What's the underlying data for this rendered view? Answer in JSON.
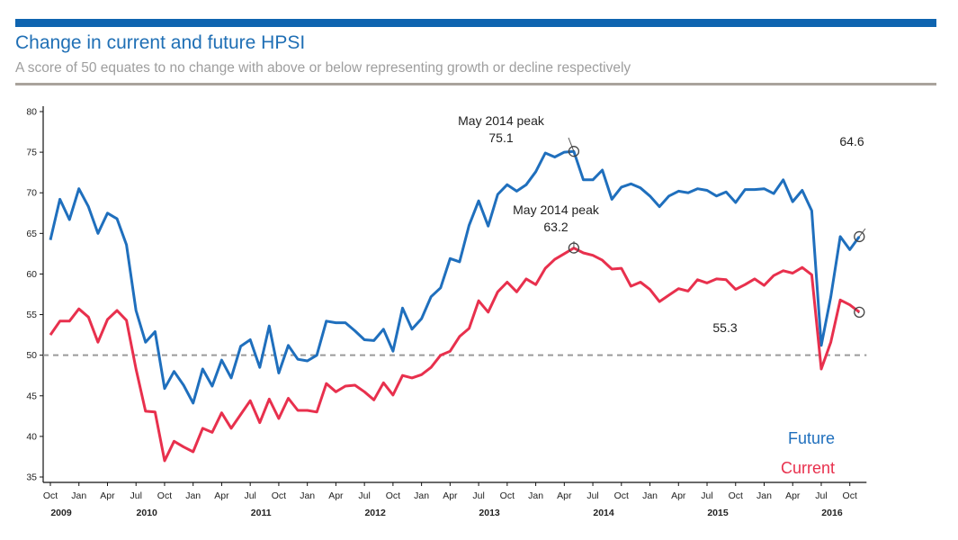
{
  "header": {
    "title": "Change in current and future HPSI",
    "subtitle": "A score of 50 equates to no change with above or below representing growth or decline respectively"
  },
  "colors": {
    "title": "#1f6fb5",
    "subtitle": "#9e9e9e",
    "top_bar": "#0e64b0",
    "future": "#1f6fbd",
    "current": "#e8304d",
    "reference_line": "#9a9a9a"
  },
  "chart_data": {
    "type": "line",
    "x_months": [
      "2009-10",
      "2009-11",
      "2009-12",
      "2010-01",
      "2010-02",
      "2010-03",
      "2010-04",
      "2010-05",
      "2010-06",
      "2010-07",
      "2010-08",
      "2010-09",
      "2010-10",
      "2010-11",
      "2010-12",
      "2011-01",
      "2011-02",
      "2011-03",
      "2011-04",
      "2011-05",
      "2011-06",
      "2011-07",
      "2011-08",
      "2011-09",
      "2011-10",
      "2011-11",
      "2011-12",
      "2012-01",
      "2012-02",
      "2012-03",
      "2012-04",
      "2012-05",
      "2012-06",
      "2012-07",
      "2012-08",
      "2012-09",
      "2012-10",
      "2012-11",
      "2012-12",
      "2013-01",
      "2013-02",
      "2013-03",
      "2013-04",
      "2013-05",
      "2013-06",
      "2013-07",
      "2013-08",
      "2013-09",
      "2013-10",
      "2013-11",
      "2013-12",
      "2014-01",
      "2014-02",
      "2014-03",
      "2014-04",
      "2014-05",
      "2014-06",
      "2014-07",
      "2014-08",
      "2014-09",
      "2014-10",
      "2014-11",
      "2014-12",
      "2015-01",
      "2015-02",
      "2015-03",
      "2015-04",
      "2015-05",
      "2015-06",
      "2015-07",
      "2015-08",
      "2015-09",
      "2015-10",
      "2015-11",
      "2015-12",
      "2016-01",
      "2016-02",
      "2016-03",
      "2016-04",
      "2016-05",
      "2016-06",
      "2016-07",
      "2016-08",
      "2016-09",
      "2016-10",
      "2016-11"
    ],
    "series": [
      {
        "name": "Future",
        "color": "#1f6fbd",
        "values": [
          64.2,
          69.2,
          66.7,
          70.5,
          68.3,
          65.0,
          67.5,
          66.8,
          63.6,
          55.5,
          51.6,
          52.9,
          45.9,
          48.0,
          46.3,
          44.1,
          48.3,
          46.2,
          49.4,
          47.2,
          51.1,
          51.9,
          48.5,
          53.6,
          47.8,
          51.2,
          49.5,
          49.3,
          50.0,
          54.2,
          54.0,
          54.0,
          53.0,
          51.9,
          51.8,
          53.2,
          50.5,
          55.8,
          53.2,
          54.5,
          57.2,
          58.3,
          61.9,
          61.5,
          66.0,
          69.0,
          65.9,
          69.8,
          71.0,
          70.2,
          71.0,
          72.6,
          74.9,
          74.4,
          75.0,
          75.1,
          71.6,
          71.6,
          72.8,
          69.2,
          70.7,
          71.1,
          70.6,
          69.6,
          68.3,
          69.6,
          70.2,
          70.0,
          70.5,
          70.3,
          69.6,
          70.1,
          68.8,
          70.4,
          70.4,
          70.5,
          69.9,
          71.6,
          68.9,
          70.3,
          67.8,
          51.2,
          57.2,
          64.6,
          63.0,
          64.6
        ]
      },
      {
        "name": "Current",
        "color": "#e8304d",
        "values": [
          52.5,
          54.2,
          54.2,
          55.7,
          54.7,
          51.6,
          54.4,
          55.5,
          54.3,
          48.3,
          43.1,
          43.0,
          37.0,
          39.4,
          38.7,
          38.1,
          41.0,
          40.5,
          42.9,
          41.0,
          42.7,
          44.4,
          41.7,
          44.6,
          42.2,
          44.7,
          43.2,
          43.2,
          43.0,
          46.5,
          45.5,
          46.2,
          46.3,
          45.5,
          44.5,
          46.6,
          45.1,
          47.5,
          47.2,
          47.6,
          48.5,
          50.0,
          50.5,
          52.3,
          53.3,
          56.7,
          55.3,
          57.8,
          59.0,
          57.8,
          59.4,
          58.7,
          60.7,
          61.8,
          62.5,
          63.2,
          62.6,
          62.3,
          61.7,
          60.6,
          60.7,
          58.5,
          59.0,
          58.1,
          56.6,
          57.4,
          58.2,
          57.9,
          59.3,
          58.9,
          59.4,
          59.3,
          58.1,
          58.7,
          59.4,
          58.6,
          59.8,
          60.4,
          60.1,
          60.8,
          59.9,
          48.3,
          51.6,
          56.8,
          56.2,
          55.3
        ]
      }
    ],
    "reference_value": 50,
    "ylim": [
      35,
      80
    ],
    "yticks": [
      35,
      40,
      45,
      50,
      55,
      60,
      65,
      70,
      75,
      80
    ],
    "x_tick_labels": [
      "Oct",
      "Jan",
      "Apr",
      "Jul",
      "Oct",
      "Jan",
      "Apr",
      "Jul",
      "Oct",
      "Jan",
      "Apr",
      "Jul",
      "Oct",
      "Jan",
      "Apr",
      "Jul",
      "Oct",
      "Jan",
      "Apr",
      "Jul",
      "Oct",
      "Jan",
      "Apr",
      "Jul",
      "Oct",
      "Jan",
      "Apr",
      "Jul",
      "Oct"
    ],
    "year_labels": [
      "2009",
      "2010",
      "2011",
      "2012",
      "2013",
      "2014",
      "2015",
      "2016"
    ],
    "annotations": [
      {
        "series": "Future",
        "month": "2014-05",
        "line1": "May 2014 peak",
        "line2": "75.1"
      },
      {
        "series": "Current",
        "month": "2014-05",
        "line1": "May 2014 peak",
        "line2": "63.2"
      },
      {
        "series": "Future",
        "month": "2016-11",
        "line1": "64.6",
        "line2": ""
      },
      {
        "series": "Current",
        "month": "2016-11",
        "line1": "55.3",
        "line2": ""
      }
    ],
    "legend": [
      {
        "label": "Future",
        "color": "#1f6fbd"
      },
      {
        "label": "Current",
        "color": "#e8304d"
      }
    ],
    "legend_position": "bottom-right",
    "grid": false
  }
}
